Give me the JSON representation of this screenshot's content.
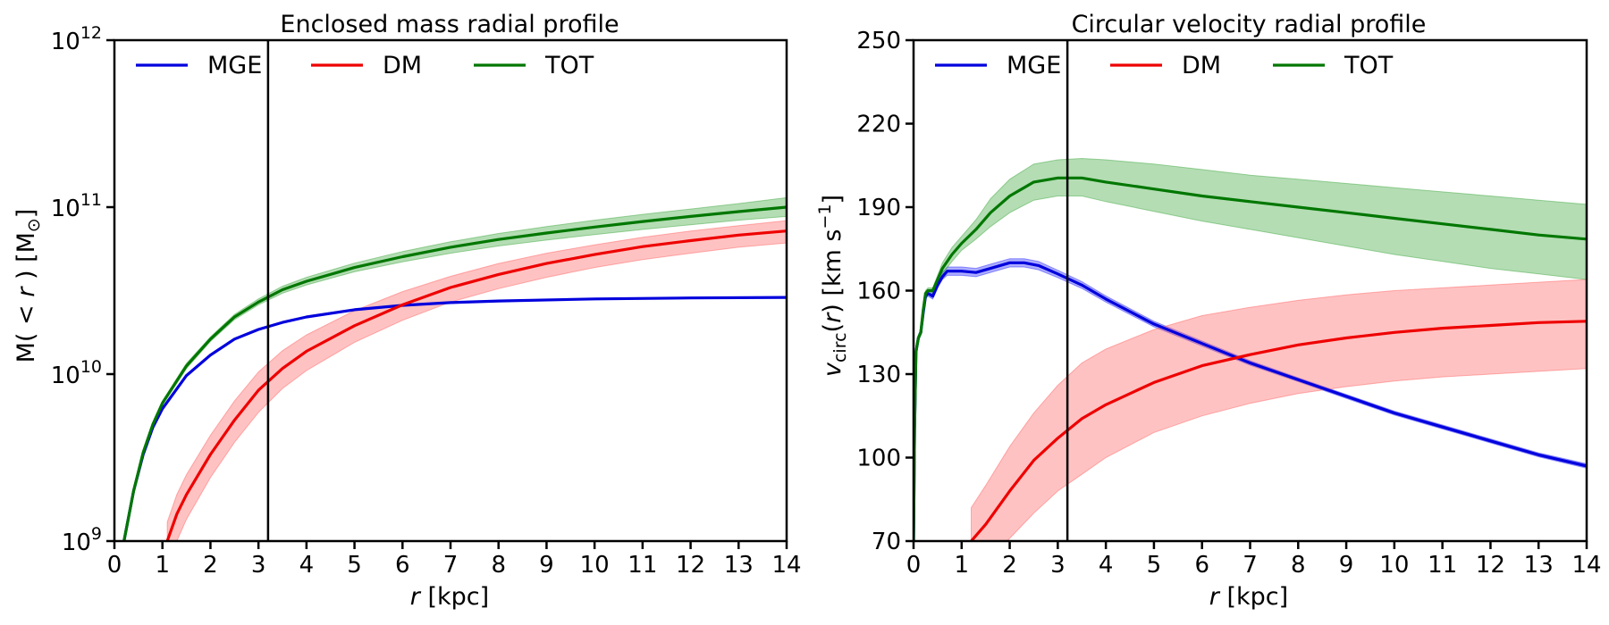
{
  "chart_data": [
    {
      "type": "line",
      "title": "Enclosed mass radial profile",
      "xlabel_var": "r",
      "xlabel_unit": " [kpc]",
      "ylabel_left": "M( < ",
      "ylabel_var": "r",
      "ylabel_right": " ) [M",
      "ylabel_sub": "⊙",
      "ylabel_close": "]",
      "yscale": "log",
      "xlim": [
        0,
        14
      ],
      "ylim": [
        1000000000,
        1000000000000
      ],
      "x_ticks": [
        "0",
        "1",
        "2",
        "3",
        "4",
        "5",
        "6",
        "7",
        "8",
        "9",
        "10",
        "11",
        "12",
        "13",
        "14"
      ],
      "y_ticks": [
        {
          "value": 1000000000,
          "base": "10",
          "exp": "9"
        },
        {
          "value": 10000000000,
          "base": "10",
          "exp": "10"
        },
        {
          "value": 100000000000,
          "base": "10",
          "exp": "11"
        },
        {
          "value": 1000000000000,
          "base": "10",
          "exp": "12"
        }
      ],
      "vline_x": 3.2,
      "legend_position": "top-left",
      "grid": false,
      "series": [
        {
          "name": "MGE",
          "color": "#0000dd",
          "band_color": "#3333ff",
          "x": [
            0.2,
            0.4,
            0.6,
            0.8,
            1.0,
            1.5,
            2.0,
            2.5,
            3.0,
            3.5,
            4.0,
            5.0,
            6.0,
            7.0,
            8.0,
            10.0,
            12.0,
            14.0
          ],
          "y": [
            1000000000.0,
            2000000000.0,
            3300000000.0,
            4800000000.0,
            6200000000.0,
            9800000000.0,
            13000000000.0,
            16200000000.0,
            18500000000.0,
            20400000000.0,
            22000000000.0,
            24300000000.0,
            25800000000.0,
            26800000000.0,
            27400000000.0,
            28200000000.0,
            28600000000.0,
            28800000000.0
          ],
          "y_lo": [
            980000000.0,
            1960000000.0,
            3250000000.0,
            4720000000.0,
            6100000000.0,
            9650000000.0,
            12800000000.0,
            16000000000.0,
            18300000000.0,
            20200000000.0,
            21800000000.0,
            24100000000.0,
            25600000000.0,
            26600000000.0,
            27200000000.0,
            28000000000.0,
            28400000000.0,
            28600000000.0
          ],
          "y_hi": [
            1020000000.0,
            2040000000.0,
            3350000000.0,
            4880000000.0,
            6300000000.0,
            9950000000.0,
            13200000000.0,
            16400000000.0,
            18700000000.0,
            20600000000.0,
            22200000000.0,
            24500000000.0,
            26000000000.0,
            27000000000.0,
            27600000000.0,
            28400000000.0,
            28800000000.0,
            29000000000.0
          ]
        },
        {
          "name": "DM",
          "color": "#ee0000",
          "band_color": "#ff6666",
          "x": [
            1.1,
            1.3,
            1.5,
            2.0,
            2.5,
            3.0,
            3.5,
            4.0,
            5.0,
            6.0,
            7.0,
            8.0,
            9.0,
            10.0,
            11.0,
            12.0,
            13.0,
            14.0
          ],
          "y": [
            1000000000.0,
            1450000000.0,
            1900000000.0,
            3300000000.0,
            5300000000.0,
            8000000000.0,
            10800000000.0,
            13700000000.0,
            19500000000.0,
            26000000000.0,
            33000000000.0,
            39500000000.0,
            46000000000.0,
            52000000000.0,
            58000000000.0,
            63000000000.0,
            68000000000.0,
            72000000000.0
          ],
          "y_lo": [
            700000000.0,
            1000000000.0,
            1350000000.0,
            2400000000.0,
            3900000000.0,
            5900000000.0,
            8200000000.0,
            10500000000.0,
            15500000000.0,
            21000000000.0,
            27000000000.0,
            32500000000.0,
            38000000000.0,
            43500000000.0,
            48500000000.0,
            53000000000.0,
            57500000000.0,
            61000000000.0
          ],
          "y_hi": [
            1300000000.0,
            1900000000.0,
            2500000000.0,
            4300000000.0,
            6900000000.0,
            10300000000.0,
            13800000000.0,
            17200000000.0,
            24000000000.0,
            31200000000.0,
            38500000000.0,
            46000000000.0,
            53000000000.0,
            59500000000.0,
            66000000000.0,
            72000000000.0,
            77500000000.0,
            83000000000.0
          ]
        },
        {
          "name": "TOT",
          "color": "#007700",
          "band_color": "#44aa44",
          "x": [
            0.2,
            0.4,
            0.6,
            0.8,
            1.0,
            1.5,
            2.0,
            2.5,
            3.0,
            3.5,
            4.0,
            5.0,
            6.0,
            7.0,
            8.0,
            9.0,
            10.0,
            11.0,
            12.0,
            13.0,
            14.0
          ],
          "y": [
            1000000000.0,
            2000000000.0,
            3400000000.0,
            5000000000.0,
            6700000000.0,
            11200000000.0,
            16200000000.0,
            22000000000.0,
            27000000000.0,
            32000000000.0,
            36000000000.0,
            43500000000.0,
            50500000000.0,
            57500000000.0,
            64000000000.0,
            70000000000.0,
            76000000000.0,
            82000000000.0,
            88000000000.0,
            94000000000.0,
            100000000000.0
          ],
          "y_lo": [
            970000000.0,
            1940000000.0,
            3300000000.0,
            4850000000.0,
            6500000000.0,
            10800000000.0,
            15700000000.0,
            21200000000.0,
            26000000000.0,
            30500000000.0,
            34200000000.0,
            41000000000.0,
            47000000000.0,
            53000000000.0,
            58500000000.0,
            63500000000.0,
            68500000000.0,
            73500000000.0,
            78500000000.0,
            83500000000.0,
            88000000000.0
          ],
          "y_hi": [
            1030000000.0,
            2060000000.0,
            3500000000.0,
            5150000000.0,
            6900000000.0,
            11600000000.0,
            16700000000.0,
            22800000000.0,
            28200000000.0,
            33600000000.0,
            38000000000.0,
            46200000000.0,
            54200000000.0,
            62000000000.0,
            69500000000.0,
            76500000000.0,
            83500000000.0,
            90500000000.0,
            97500000000.0,
            105000000000.0,
            114000000000.0
          ]
        }
      ]
    },
    {
      "type": "line",
      "title": "Circular velocity radial profile",
      "xlabel_var": "r",
      "xlabel_unit": " [kpc]",
      "ylabel_var": "v",
      "ylabel_sub": "circ",
      "ylabel_mid": "(",
      "ylabel_var2": "r",
      "ylabel_right": ") [km s",
      "ylabel_sup": "−1",
      "ylabel_close": "]",
      "yscale": "linear",
      "xlim": [
        0,
        14
      ],
      "ylim": [
        70,
        250
      ],
      "x_ticks": [
        "0",
        "1",
        "2",
        "3",
        "4",
        "5",
        "6",
        "7",
        "8",
        "9",
        "10",
        "11",
        "12",
        "13",
        "14"
      ],
      "y_ticks": [
        "70",
        "100",
        "130",
        "160",
        "190",
        "220",
        "250"
      ],
      "vline_x": 3.2,
      "legend_position": "top-left",
      "grid": false,
      "series": [
        {
          "name": "MGE",
          "color": "#0000dd",
          "band_color": "#3333ff",
          "x": [
            0.0,
            0.02,
            0.05,
            0.1,
            0.15,
            0.2,
            0.25,
            0.3,
            0.4,
            0.5,
            0.6,
            0.7,
            0.8,
            1.0,
            1.3,
            1.6,
            2.0,
            2.3,
            2.6,
            3.0,
            3.5,
            4.0,
            5.0,
            6.0,
            7.0,
            8.0,
            9.0,
            10.0,
            11.0,
            12.0,
            13.0,
            14.0
          ],
          "y": [
            70,
            110,
            138,
            143,
            145,
            152,
            158,
            159,
            158,
            162,
            165,
            167,
            167,
            167,
            166.5,
            168,
            170,
            170,
            169,
            166,
            162,
            157,
            148,
            141,
            134,
            128,
            122,
            116,
            111,
            106,
            101,
            97
          ],
          "y_lo": [
            70,
            109,
            137,
            142,
            144,
            151,
            157,
            158,
            157,
            161,
            164,
            165.5,
            165.5,
            165.5,
            165,
            166.5,
            168.5,
            168.5,
            167.5,
            164.7,
            160.8,
            155.9,
            147,
            140.1,
            133.2,
            127.3,
            121.3,
            115.3,
            110.3,
            105.3,
            100.3,
            96.2
          ],
          "y_hi": [
            70,
            111,
            139,
            144,
            146,
            153,
            159,
            160,
            159.5,
            163.5,
            166.5,
            168.5,
            168.5,
            168.5,
            168,
            169.5,
            171.5,
            171.5,
            170.5,
            167.3,
            163.2,
            158.1,
            149,
            141.9,
            134.8,
            128.7,
            122.7,
            116.7,
            111.7,
            106.7,
            101.7,
            97.8
          ]
        },
        {
          "name": "DM",
          "color": "#ee0000",
          "band_color": "#ff6666",
          "x": [
            1.2,
            1.5,
            2.0,
            2.5,
            3.0,
            3.5,
            4.0,
            5.0,
            6.0,
            7.0,
            8.0,
            9.0,
            10.0,
            11.0,
            12.0,
            13.0,
            14.0
          ],
          "y": [
            70,
            76,
            88,
            99,
            107,
            114,
            119,
            127,
            133,
            137,
            140.5,
            143,
            145,
            146.5,
            147.5,
            148.5,
            149
          ],
          "y_lo": [
            58,
            62,
            71,
            80,
            88,
            94,
            100,
            109,
            115,
            119.5,
            123,
            125.5,
            127.5,
            129,
            130,
            131,
            132
          ],
          "y_hi": [
            82,
            90,
            104,
            116,
            126,
            134,
            139,
            146,
            151,
            154,
            156.5,
            158.5,
            160,
            161,
            162,
            163,
            164
          ]
        },
        {
          "name": "TOT",
          "color": "#007700",
          "band_color": "#44aa44",
          "x": [
            0.0,
            0.02,
            0.05,
            0.1,
            0.15,
            0.2,
            0.25,
            0.3,
            0.4,
            0.5,
            0.6,
            0.8,
            1.0,
            1.3,
            1.6,
            2.0,
            2.5,
            3.0,
            3.5,
            4.0,
            5.0,
            6.0,
            7.0,
            8.0,
            9.0,
            10.0,
            11.0,
            12.0,
            13.0,
            14.0
          ],
          "y": [
            70,
            110,
            138,
            143,
            145,
            153,
            159,
            160,
            160,
            164,
            168,
            173,
            177,
            182,
            188,
            194,
            199,
            200.5,
            200.5,
            199,
            196.5,
            194,
            192,
            190,
            188,
            186,
            184,
            182,
            180,
            178.5
          ],
          "y_lo": [
            70,
            109,
            137,
            142,
            144,
            152,
            158,
            159,
            159,
            162.5,
            166,
            170.5,
            174.5,
            178.5,
            183,
            188,
            192.5,
            194,
            194,
            192,
            188.5,
            185,
            182,
            179,
            176,
            173,
            170.5,
            168,
            166,
            164
          ],
          "y_hi": [
            70,
            111,
            139,
            144,
            146,
            154,
            160,
            161,
            161,
            165.5,
            170,
            175.5,
            179.5,
            185.5,
            193,
            200,
            205.5,
            207,
            207.5,
            207,
            205.5,
            203.5,
            201.5,
            200,
            198.5,
            197,
            195.5,
            194,
            192.5,
            191
          ]
        }
      ]
    }
  ]
}
